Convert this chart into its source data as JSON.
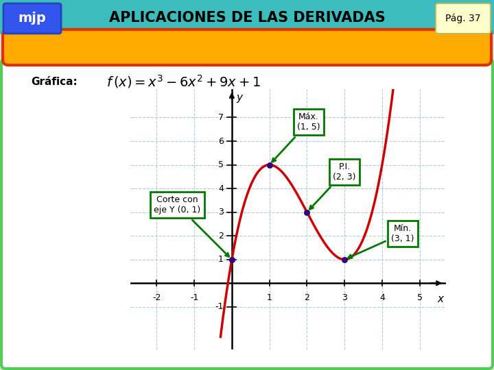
{
  "title": "APLICACIONES DE LAS DERIVADAS",
  "page": "Pág. 37",
  "mjp_label": "mjp",
  "grafica_label": "Gráfica:",
  "header_bg": "#3CBCBC",
  "mjp_bg": "#3355EE",
  "mjp_edge": "#2244BB",
  "page_bg": "#FFFFCC",
  "page_edge": "#BBBB66",
  "outer_border_color": "#55CC55",
  "inner_bg": "#FFFFFF",
  "orange_fill": "#FFAA00",
  "orange_edge": "#DD3300",
  "curve_color": "#CC0000",
  "arrow_color": "#007700",
  "box_color": "#007700",
  "dot_color": "#330077",
  "grid_color": "#AACCDD",
  "bg_color": "#DDDDDD",
  "xlim": [
    -2.7,
    5.7
  ],
  "ylim": [
    -2.8,
    8.2
  ],
  "xticks": [
    -2,
    -1,
    1,
    2,
    3,
    4,
    5
  ],
  "yticks": [
    -1,
    1,
    2,
    3,
    4,
    5,
    6,
    7
  ],
  "grid_x": [
    -2,
    -1,
    0,
    1,
    2,
    3,
    4,
    5
  ],
  "grid_y": [
    -1,
    1,
    2,
    3,
    4,
    5,
    6,
    7
  ]
}
